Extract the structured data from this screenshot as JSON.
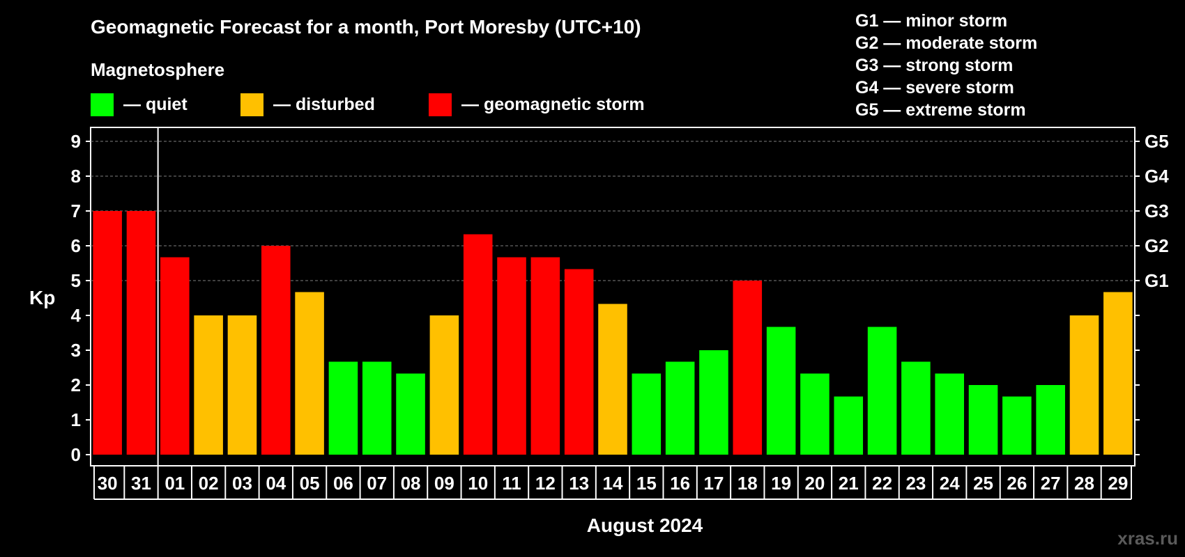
{
  "colors": {
    "quiet": "#00ff00",
    "disturbed": "#ffc000",
    "storm": "#ff0000",
    "background": "#000000",
    "foreground": "#ffffff",
    "grid": "#7f7f7f"
  },
  "header": {
    "title": "Geomagnetic Forecast for a month, Port Moresby (UTC+10)",
    "section_label": "Magnetosphere"
  },
  "legend": [
    {
      "key": "quiet",
      "label": "— quiet"
    },
    {
      "key": "disturbed",
      "label": "— disturbed"
    },
    {
      "key": "storm",
      "label": "— geomagnetic storm"
    }
  ],
  "g_legend": [
    "G1 — minor storm",
    "G2 — moderate storm",
    "G3 — strong storm",
    "G4 — severe storm",
    "G5 — extreme storm"
  ],
  "watermark": "xras.ru",
  "chart_data": {
    "type": "bar",
    "title": "Geomagnetic Forecast for a month, Port Moresby (UTC+10)",
    "xlabel": "August 2024",
    "ylabel": "Kp",
    "ylim": [
      0,
      9
    ],
    "yticks": [
      "0",
      "1",
      "2",
      "3",
      "4",
      "5",
      "6",
      "7",
      "8",
      "9"
    ],
    "grid": true,
    "g_scale": [
      {
        "level": 5,
        "label": "G1"
      },
      {
        "level": 6,
        "label": "G2"
      },
      {
        "level": 7,
        "label": "G3"
      },
      {
        "level": 8,
        "label": "G4"
      },
      {
        "level": 9,
        "label": "G5"
      }
    ],
    "categories": [
      "30",
      "31",
      "01",
      "02",
      "03",
      "04",
      "05",
      "06",
      "07",
      "08",
      "09",
      "10",
      "11",
      "12",
      "13",
      "14",
      "15",
      "16",
      "17",
      "18",
      "19",
      "20",
      "21",
      "22",
      "23",
      "24",
      "25",
      "26",
      "27",
      "28",
      "29"
    ],
    "month_break_after": "31",
    "values": [
      7.0,
      7.0,
      5.67,
      4.0,
      4.0,
      6.0,
      4.67,
      2.67,
      2.67,
      2.33,
      4.0,
      6.33,
      5.67,
      5.67,
      5.33,
      4.33,
      2.33,
      2.67,
      3.0,
      5.0,
      3.67,
      2.33,
      1.67,
      3.67,
      2.67,
      2.33,
      2.0,
      1.67,
      2.0,
      4.0,
      4.67
    ],
    "status": [
      "storm",
      "storm",
      "storm",
      "disturbed",
      "disturbed",
      "storm",
      "disturbed",
      "quiet",
      "quiet",
      "quiet",
      "disturbed",
      "storm",
      "storm",
      "storm",
      "storm",
      "disturbed",
      "quiet",
      "quiet",
      "quiet",
      "storm",
      "quiet",
      "quiet",
      "quiet",
      "quiet",
      "quiet",
      "quiet",
      "quiet",
      "quiet",
      "quiet",
      "disturbed",
      "disturbed"
    ]
  }
}
